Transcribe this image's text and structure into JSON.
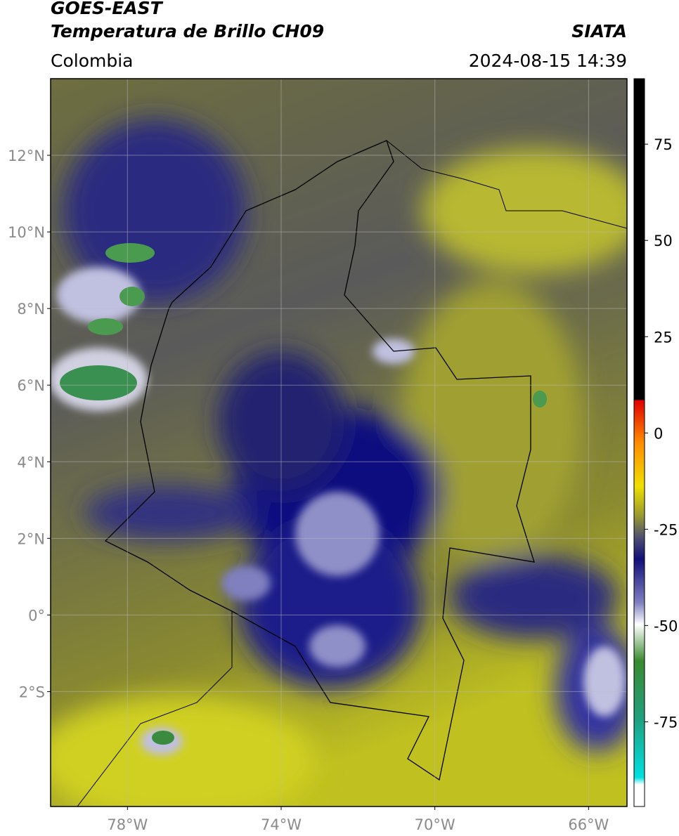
{
  "header": {
    "title": "GOES-EAST",
    "subtitle": "Temperatura de Brillo CH09",
    "region": "Colombia",
    "source": "SIATA",
    "datetime": "2024-08-15 14:39"
  },
  "map": {
    "lonlim": [
      -80,
      -65
    ],
    "latlim": [
      -5,
      14
    ],
    "lon_ticks": [
      {
        "value": -78,
        "label": "78°W"
      },
      {
        "value": -74,
        "label": "74°W"
      },
      {
        "value": -70,
        "label": "70°W"
      },
      {
        "value": -66,
        "label": "66°W"
      }
    ],
    "lat_ticks": [
      {
        "value": 12,
        "label": "12°N"
      },
      {
        "value": 10,
        "label": "10°N"
      },
      {
        "value": 8,
        "label": "8°N"
      },
      {
        "value": 6,
        "label": "6°N"
      },
      {
        "value": 4,
        "label": "4°N"
      },
      {
        "value": 2,
        "label": "2°N"
      },
      {
        "value": 0,
        "label": "0°"
      },
      {
        "value": -2,
        "label": "2°S"
      }
    ]
  },
  "colorbar": {
    "lim": [
      -97,
      92
    ],
    "ticks": [
      75,
      50,
      25,
      0,
      -25,
      -50,
      -75
    ]
  }
}
